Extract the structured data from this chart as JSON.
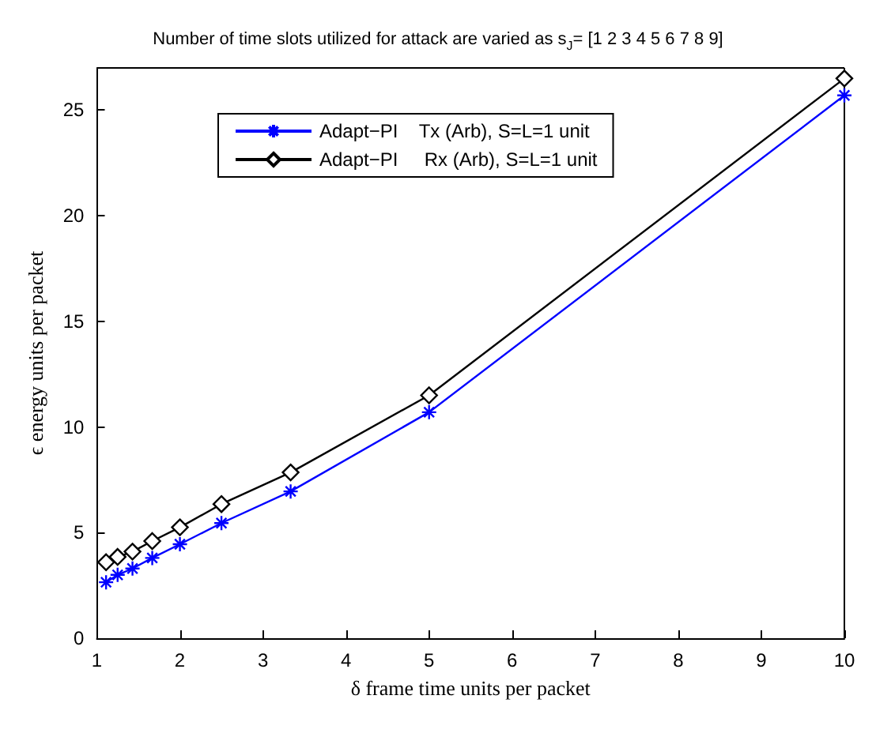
{
  "chart_data": {
    "type": "line",
    "title": "Number of time slots utilized for attack are varied as s$_{J}$= [1 2 3 4 5 6 7 8 9]",
    "xlabel": "δ frame time units per packet",
    "ylabel": "ϵ energy units per packet",
    "x": [
      1.111,
      1.25,
      1.429,
      1.667,
      2,
      2.5,
      3.333,
      5,
      10
    ],
    "series": [
      {
        "name": "Adapt−PI    Tx (Arb), S=L=1 unit",
        "color": "#0000ff",
        "marker": "cross",
        "values": [
          2.65,
          3.0,
          3.3,
          3.8,
          4.45,
          5.45,
          6.95,
          10.7,
          25.7
        ]
      },
      {
        "name": "Adapt−PI     Rx (Arb), S=L=1 unit",
        "color": "#000000",
        "marker": "diamond",
        "values": [
          3.6,
          3.85,
          4.1,
          4.6,
          5.25,
          6.35,
          7.85,
          11.5,
          26.5
        ]
      }
    ],
    "xlim": [
      1,
      10
    ],
    "xticks": [
      1,
      2,
      3,
      4,
      5,
      6,
      7,
      8,
      9,
      10
    ],
    "ylim": [
      0,
      27
    ],
    "yticks": [
      0,
      5,
      10,
      15,
      20,
      25
    ],
    "grid": false,
    "legend": "top left",
    "line_style": "solid"
  }
}
